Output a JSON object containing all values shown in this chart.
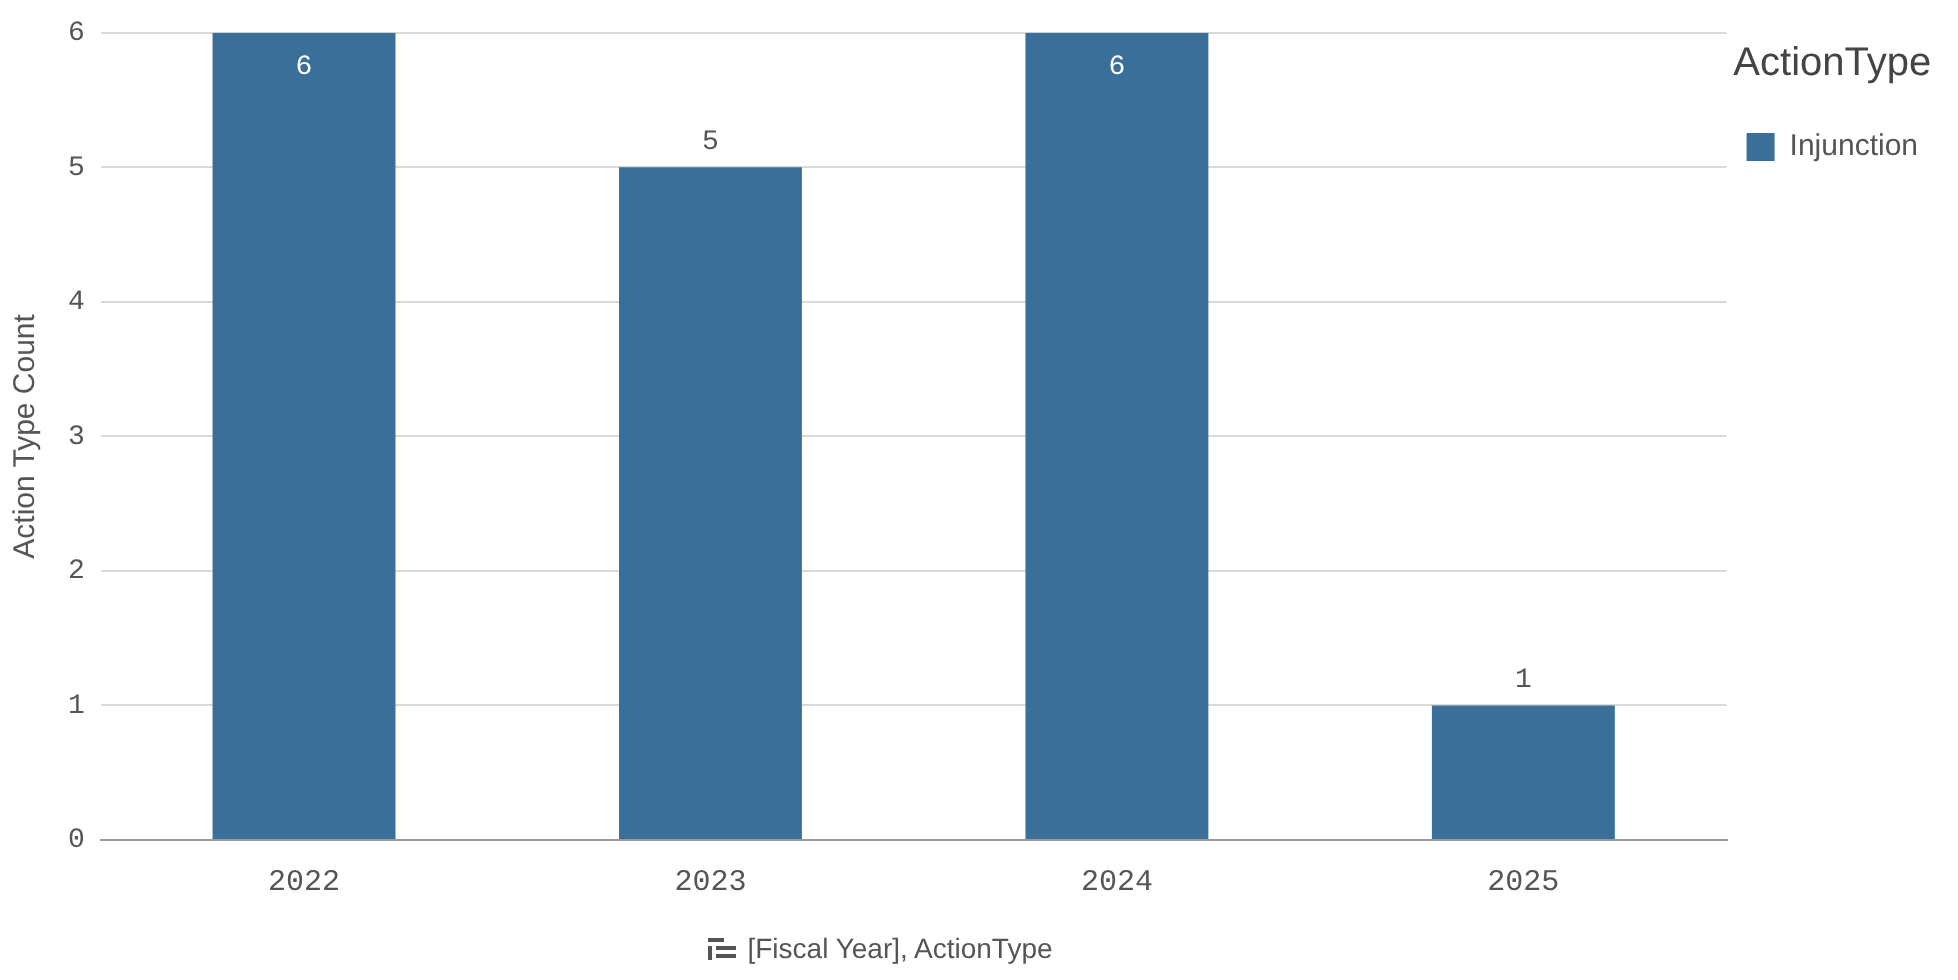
{
  "chart_data": {
    "type": "bar",
    "ylabel": "Action Type Count",
    "xlabel": "[Fiscal Year], ActionType",
    "legend_title": "ActionType",
    "categories": [
      "2022",
      "2023",
      "2024",
      "2025"
    ],
    "series": [
      {
        "name": "Injunction",
        "color": "#3a6f9a",
        "values": [
          6,
          5,
          6,
          1
        ]
      }
    ],
    "ylim": [
      0,
      6
    ],
    "yticks": [
      0,
      1,
      2,
      3,
      4,
      5,
      6
    ],
    "grid": "y",
    "legend": "top right",
    "data_labels": true
  }
}
